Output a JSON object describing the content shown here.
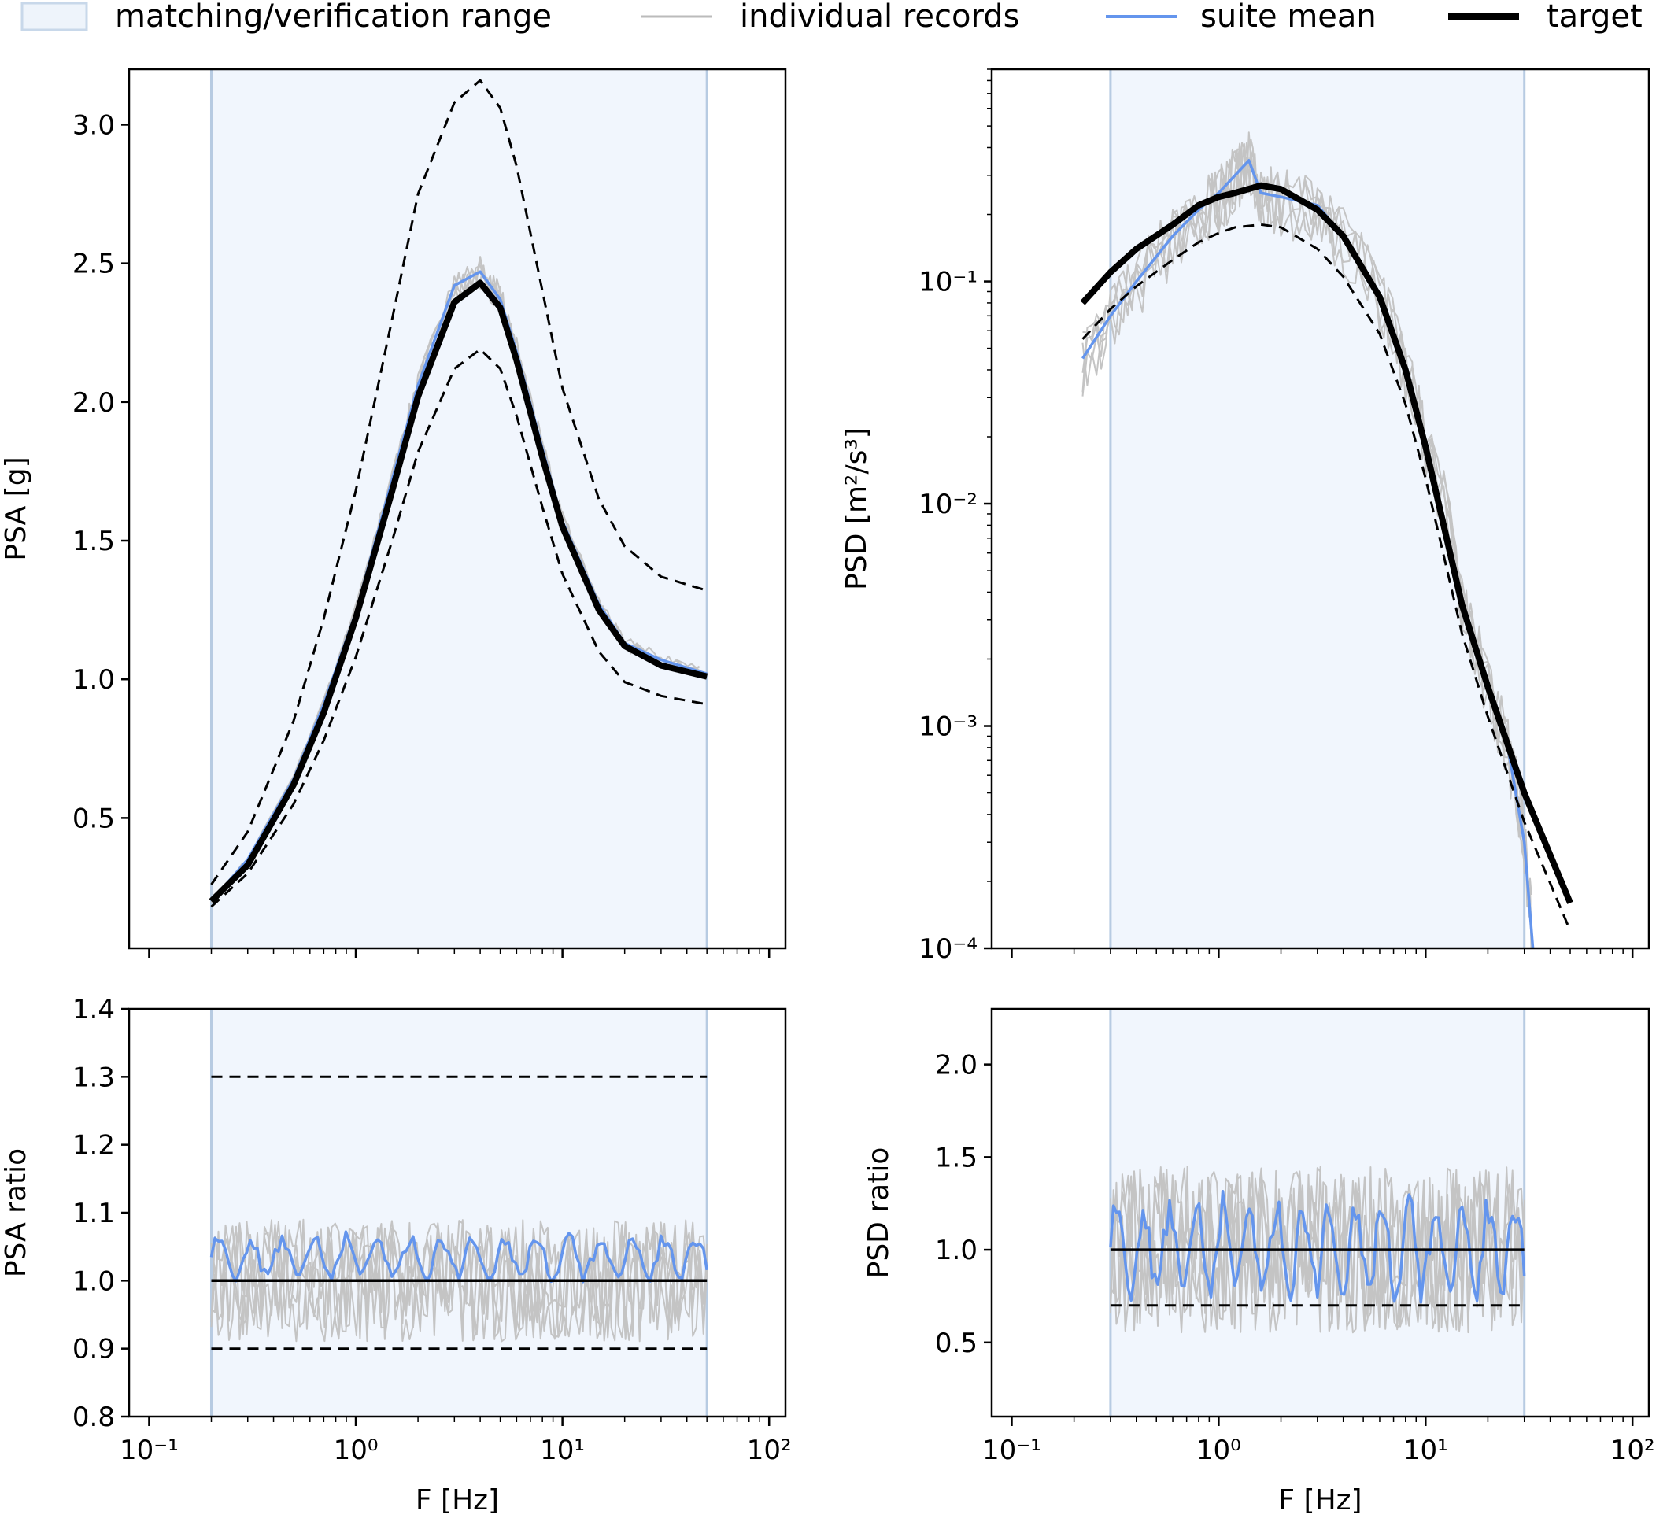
{
  "legend": {
    "items": [
      {
        "label": "matching/verification range",
        "kind": "patch",
        "color": "#dbe7f5"
      },
      {
        "label": "individual records",
        "kind": "line",
        "color": "#bbbbbb"
      },
      {
        "label": "suite mean",
        "kind": "line",
        "color": "#6495ed"
      },
      {
        "label": "target",
        "kind": "line",
        "color": "#000000"
      }
    ]
  },
  "chart_data": [
    {
      "id": "psa",
      "type": "line",
      "xscale": "log",
      "yscale": "linear",
      "xlim": [
        0.08,
        120
      ],
      "ylim": [
        0.03,
        3.2
      ],
      "xlabel": "F [Hz]",
      "ylabel": "PSA [g]",
      "yticks": [
        0.5,
        1.0,
        1.5,
        2.0,
        2.5,
        3.0
      ],
      "ytick_labels": [
        "0.5",
        "1.0",
        "1.5",
        "2.0",
        "2.5",
        "3.0"
      ],
      "x_tick_labels_shown": false,
      "range": [
        0.2,
        50
      ],
      "target": {
        "x": [
          0.2,
          0.3,
          0.5,
          0.7,
          1.0,
          1.5,
          2.0,
          3.0,
          4.0,
          5.0,
          6.0,
          8.0,
          10,
          15,
          20,
          30,
          50
        ],
        "y": [
          0.2,
          0.33,
          0.62,
          0.88,
          1.22,
          1.68,
          2.02,
          2.36,
          2.43,
          2.34,
          2.15,
          1.8,
          1.55,
          1.25,
          1.12,
          1.05,
          1.01
        ]
      },
      "upper": {
        "x": [
          0.2,
          0.3,
          0.5,
          0.7,
          1.0,
          1.5,
          2.0,
          3.0,
          4.0,
          5.0,
          6.0,
          8.0,
          10,
          15,
          20,
          30,
          50
        ],
        "y": [
          0.26,
          0.45,
          0.85,
          1.22,
          1.68,
          2.3,
          2.75,
          3.08,
          3.16,
          3.06,
          2.85,
          2.4,
          2.05,
          1.65,
          1.48,
          1.37,
          1.32
        ]
      },
      "lower": {
        "x": [
          0.2,
          0.3,
          0.5,
          0.7,
          1.0,
          1.5,
          2.0,
          3.0,
          4.0,
          5.0,
          6.0,
          8.0,
          10,
          15,
          20,
          30,
          50
        ],
        "y": [
          0.18,
          0.3,
          0.55,
          0.78,
          1.08,
          1.5,
          1.82,
          2.12,
          2.19,
          2.12,
          1.95,
          1.62,
          1.38,
          1.1,
          0.99,
          0.94,
          0.91
        ]
      },
      "mean": {
        "x": [
          0.2,
          0.3,
          0.5,
          0.7,
          1.0,
          1.5,
          2.0,
          3.0,
          4.0,
          5.0,
          6.0,
          8.0,
          10,
          15,
          20,
          30,
          50
        ],
        "y": [
          0.2,
          0.35,
          0.64,
          0.91,
          1.24,
          1.72,
          2.06,
          2.42,
          2.47,
          2.37,
          2.18,
          1.83,
          1.57,
          1.27,
          1.13,
          1.07,
          1.02
        ]
      }
    },
    {
      "id": "psd",
      "type": "line",
      "xscale": "log",
      "yscale": "log",
      "xlim": [
        0.08,
        120
      ],
      "ylim": [
        0.0001,
        0.9
      ],
      "xlabel": "F [Hz]",
      "ylabel": "PSD [m²/s³]",
      "yticks": [
        0.0001,
        0.001,
        0.01,
        0.1
      ],
      "ytick_labels": [
        "10⁻⁴",
        "10⁻³",
        "10⁻²",
        "10⁻¹"
      ],
      "x_tick_labels_shown": false,
      "range": [
        0.3,
        30
      ],
      "target": {
        "x": [
          0.22,
          0.3,
          0.4,
          0.6,
          0.8,
          1.0,
          1.2,
          1.6,
          2.0,
          3.0,
          4.0,
          6.0,
          8.0,
          10,
          15,
          20,
          30,
          50
        ],
        "y": [
          0.08,
          0.11,
          0.14,
          0.18,
          0.22,
          0.24,
          0.25,
          0.27,
          0.26,
          0.21,
          0.16,
          0.085,
          0.04,
          0.018,
          0.0035,
          0.0015,
          0.0005,
          0.00016
        ]
      },
      "lower": {
        "x": [
          0.22,
          0.3,
          0.4,
          0.6,
          0.8,
          1.0,
          1.2,
          1.6,
          2.0,
          3.0,
          4.0,
          6.0,
          8.0,
          10,
          15,
          20,
          30,
          50
        ],
        "y": [
          0.055,
          0.075,
          0.095,
          0.125,
          0.15,
          0.165,
          0.175,
          0.18,
          0.175,
          0.14,
          0.105,
          0.058,
          0.028,
          0.013,
          0.0026,
          0.0011,
          0.00037,
          0.00012
        ]
      },
      "mean": {
        "x": [
          0.22,
          0.3,
          0.4,
          0.6,
          0.8,
          1.0,
          1.2,
          1.4,
          1.6,
          2.0,
          3.0,
          4.0,
          6.0,
          8.0,
          10,
          15,
          20,
          25,
          30,
          33
        ],
        "y": [
          0.045,
          0.07,
          0.1,
          0.16,
          0.21,
          0.25,
          0.3,
          0.35,
          0.25,
          0.24,
          0.22,
          0.16,
          0.085,
          0.04,
          0.018,
          0.0035,
          0.0015,
          0.0008,
          0.0003,
          0.0001
        ]
      }
    },
    {
      "id": "psa-ratio",
      "type": "line",
      "xscale": "log",
      "yscale": "linear",
      "xlim": [
        0.08,
        120
      ],
      "ylim": [
        0.8,
        1.4
      ],
      "xlabel": "F [Hz]",
      "ylabel": "PSA ratio",
      "yticks": [
        0.8,
        0.9,
        1.0,
        1.1,
        1.2,
        1.3,
        1.4
      ],
      "ytick_labels": [
        "0.8",
        "0.9",
        "1.0",
        "1.1",
        "1.2",
        "1.3",
        "1.4"
      ],
      "xticks": [
        0.1,
        1,
        10,
        100
      ],
      "xtick_labels": [
        "10⁻¹",
        "10⁰",
        "10¹",
        "10²"
      ],
      "x_tick_labels_shown": true,
      "range": [
        0.2,
        50
      ],
      "target_level": 1.0,
      "upper_level": 1.3,
      "lower_level": 0.9,
      "mean_band": [
        0.99,
        1.08
      ]
    },
    {
      "id": "psd-ratio",
      "type": "line",
      "xscale": "log",
      "yscale": "linear",
      "xlim": [
        0.08,
        120
      ],
      "ylim": [
        0.1,
        2.3
      ],
      "xlabel": "F [Hz]",
      "ylabel": "PSD ratio",
      "yticks": [
        0.5,
        1.0,
        1.5,
        2.0
      ],
      "ytick_labels": [
        "0.5",
        "1.0",
        "1.5",
        "2.0"
      ],
      "xticks": [
        0.1,
        1,
        10,
        100
      ],
      "xtick_labels": [
        "10⁻¹",
        "10⁰",
        "10¹",
        "10²"
      ],
      "x_tick_labels_shown": true,
      "range": [
        0.3,
        30
      ],
      "target_level": 1.0,
      "lower_level": 0.7,
      "mean_band": [
        0.65,
        1.38
      ]
    }
  ]
}
